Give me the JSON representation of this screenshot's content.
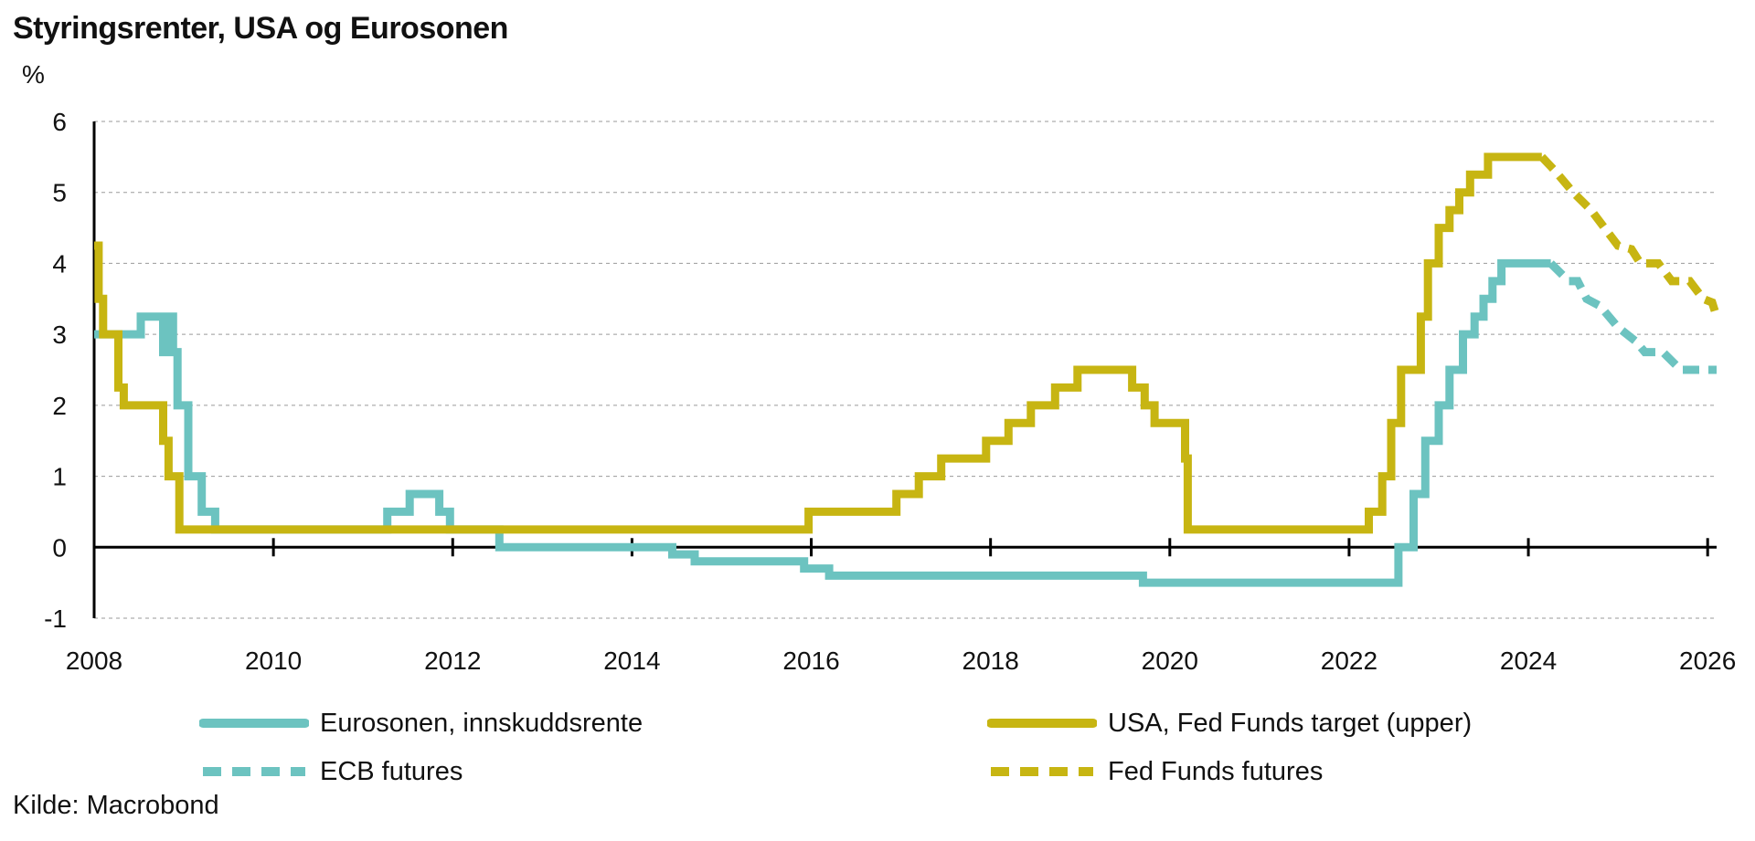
{
  "chart_data": {
    "type": "line",
    "title": "Styringsrenter, USA og Eurosonen",
    "ylabel": "%",
    "xlabel": "",
    "xlim": [
      2008,
      2026.1
    ],
    "ylim": [
      -1,
      6
    ],
    "x_ticks": [
      2008,
      2010,
      2012,
      2014,
      2016,
      2018,
      2020,
      2022,
      2024,
      2026
    ],
    "x_tick_labels": [
      "2008",
      "2010",
      "2012",
      "2014",
      "2016",
      "2018",
      "2020",
      "2022",
      "2024",
      "2026"
    ],
    "y_ticks": [
      -1,
      0,
      1,
      2,
      3,
      4,
      5,
      6
    ],
    "y_tick_labels": [
      "-1",
      "0",
      "1",
      "2",
      "3",
      "4",
      "5",
      "6"
    ],
    "grid": "horizontal dashed",
    "legend_position": "bottom",
    "source": "Kilde: Macrobond",
    "series": [
      {
        "name": "Eurosonen, innskuddsrente",
        "color": "#6cc3c0",
        "style": "solid",
        "step": true,
        "points": [
          [
            2008.0,
            3.0
          ],
          [
            2008.52,
            3.25
          ],
          [
            2008.77,
            2.75
          ],
          [
            2008.85,
            3.25
          ],
          [
            2008.88,
            2.75
          ],
          [
            2008.93,
            2.0
          ],
          [
            2009.05,
            1.0
          ],
          [
            2009.2,
            0.5
          ],
          [
            2009.35,
            0.25
          ],
          [
            2011.27,
            0.5
          ],
          [
            2011.52,
            0.75
          ],
          [
            2011.85,
            0.5
          ],
          [
            2011.97,
            0.25
          ],
          [
            2012.52,
            0.0
          ],
          [
            2014.45,
            -0.1
          ],
          [
            2014.7,
            -0.2
          ],
          [
            2015.92,
            -0.3
          ],
          [
            2016.2,
            -0.4
          ],
          [
            2019.7,
            -0.5
          ],
          [
            2022.55,
            0.0
          ],
          [
            2022.72,
            0.75
          ],
          [
            2022.85,
            1.5
          ],
          [
            2023.0,
            2.0
          ],
          [
            2023.12,
            2.5
          ],
          [
            2023.27,
            3.0
          ],
          [
            2023.4,
            3.25
          ],
          [
            2023.5,
            3.5
          ],
          [
            2023.6,
            3.75
          ],
          [
            2023.7,
            4.0
          ],
          [
            2024.25,
            4.0
          ]
        ]
      },
      {
        "name": "USA, Fed Funds target (upper)",
        "color": "#c7b512",
        "style": "solid",
        "step": true,
        "points": [
          [
            2008.0,
            4.25
          ],
          [
            2008.05,
            3.5
          ],
          [
            2008.1,
            3.0
          ],
          [
            2008.27,
            2.25
          ],
          [
            2008.33,
            2.0
          ],
          [
            2008.77,
            1.5
          ],
          [
            2008.83,
            1.0
          ],
          [
            2008.95,
            0.25
          ],
          [
            2015.97,
            0.5
          ],
          [
            2016.95,
            0.75
          ],
          [
            2017.2,
            1.0
          ],
          [
            2017.45,
            1.25
          ],
          [
            2017.95,
            1.5
          ],
          [
            2018.2,
            1.75
          ],
          [
            2018.45,
            2.0
          ],
          [
            2018.72,
            2.25
          ],
          [
            2018.97,
            2.5
          ],
          [
            2019.58,
            2.25
          ],
          [
            2019.72,
            2.0
          ],
          [
            2019.83,
            1.75
          ],
          [
            2020.17,
            1.25
          ],
          [
            2020.2,
            0.25
          ],
          [
            2022.22,
            0.5
          ],
          [
            2022.37,
            1.0
          ],
          [
            2022.47,
            1.75
          ],
          [
            2022.58,
            2.5
          ],
          [
            2022.8,
            3.25
          ],
          [
            2022.88,
            4.0
          ],
          [
            2023.0,
            4.5
          ],
          [
            2023.12,
            4.75
          ],
          [
            2023.23,
            5.0
          ],
          [
            2023.35,
            5.25
          ],
          [
            2023.55,
            5.5
          ],
          [
            2024.15,
            5.5
          ]
        ]
      },
      {
        "name": "ECB futures",
        "color": "#6cc3c0",
        "style": "dashed",
        "step": false,
        "points": [
          [
            2024.25,
            4.0
          ],
          [
            2024.45,
            3.75
          ],
          [
            2024.55,
            3.75
          ],
          [
            2024.65,
            3.5
          ],
          [
            2024.8,
            3.4
          ],
          [
            2025.0,
            3.1
          ],
          [
            2025.2,
            2.9
          ],
          [
            2025.3,
            2.75
          ],
          [
            2025.5,
            2.75
          ],
          [
            2025.7,
            2.5
          ],
          [
            2026.1,
            2.5
          ]
        ]
      },
      {
        "name": "Fed Funds futures",
        "color": "#c7b512",
        "style": "dashed",
        "step": false,
        "points": [
          [
            2024.15,
            5.5
          ],
          [
            2024.3,
            5.3
          ],
          [
            2024.5,
            5.0
          ],
          [
            2024.7,
            4.75
          ],
          [
            2024.85,
            4.5
          ],
          [
            2025.0,
            4.25
          ],
          [
            2025.15,
            4.2
          ],
          [
            2025.25,
            4.0
          ],
          [
            2025.45,
            4.0
          ],
          [
            2025.6,
            3.75
          ],
          [
            2025.8,
            3.75
          ],
          [
            2025.95,
            3.5
          ],
          [
            2026.05,
            3.45
          ],
          [
            2026.1,
            3.25
          ]
        ]
      }
    ]
  }
}
